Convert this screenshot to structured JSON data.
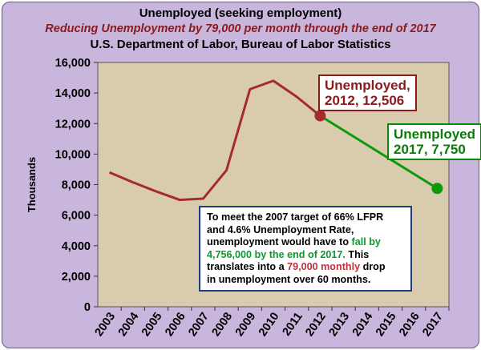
{
  "titles": {
    "line1": "Unemployed (seeking employment)",
    "line2": "Reducing Unemployment by 79,000 per month through the end of 2017",
    "line3": "U.S. Department of Labor, Bureau of Labor Statistics"
  },
  "chart_data": {
    "type": "line",
    "title": "Unemployed (seeking employment)",
    "subtitle": "Reducing Unemployment by 79,000 per month through the end of 2017",
    "source": "U.S. Department of Labor, Bureau of Labor Statistics",
    "xlabel": "",
    "ylabel": "Thousands",
    "ylim": [
      0,
      16000
    ],
    "yticks": [
      0,
      2000,
      4000,
      6000,
      8000,
      10000,
      12000,
      14000,
      16000
    ],
    "ytick_labels": [
      "0",
      "2,000",
      "4,000",
      "6,000",
      "8,000",
      "10,000",
      "12,000",
      "14,000",
      "16,000"
    ],
    "categories": [
      "2003",
      "2004",
      "2005",
      "2006",
      "2007",
      "2008",
      "2009",
      "2010",
      "2011",
      "2012",
      "2013",
      "2014",
      "2015",
      "2016",
      "2017"
    ],
    "grid": false,
    "series": [
      {
        "name": "",
        "color": "#a52a2a",
        "x": [
          "2003",
          "2004",
          "2005",
          "2006",
          "2007",
          "2008",
          "2009",
          "2010",
          "2011",
          "2012"
        ],
        "values": [
          8800,
          8150,
          7550,
          7000,
          7080,
          8950,
          14250,
          14800,
          13750,
          12506
        ]
      },
      {
        "name": "",
        "color": "#0a9a0a",
        "x": [
          "2012",
          "2017"
        ],
        "values": [
          12506,
          7750
        ]
      }
    ],
    "markers": [
      {
        "x": "2012",
        "value": 12506,
        "color": "#a52a2a"
      },
      {
        "x": "2017",
        "value": 7750,
        "color": "#0a9a0a"
      }
    ],
    "annotations": [
      {
        "id": "a2012",
        "lines": [
          "Unemployed,",
          "2012,  12,506"
        ],
        "color": "#8b1a1a"
      },
      {
        "id": "a2017",
        "lines": [
          "Unemployed",
          "2017,  7,750"
        ],
        "color": "#0a7a0a"
      }
    ]
  },
  "note": {
    "l1": "To meet the 2007 target of 66% LFPR",
    "l2": "and 4.6% Unemployment Rate,",
    "l3a": "unemployment would have to",
    "l3b": "fall by",
    "l4a": "4,756,000 by the end of 2017.",
    "l4b": " This",
    "l5a": "translates into a",
    "l5b": "79,000 monthly",
    "l5c": " drop",
    "l6": "in unemployment  over 60 months."
  },
  "colors": {
    "frame": "#c9b6dc",
    "plot_area": "#d9ccae",
    "line_2003_2012": "#a52a2a",
    "line_2012_2017": "#0a9a0a"
  }
}
